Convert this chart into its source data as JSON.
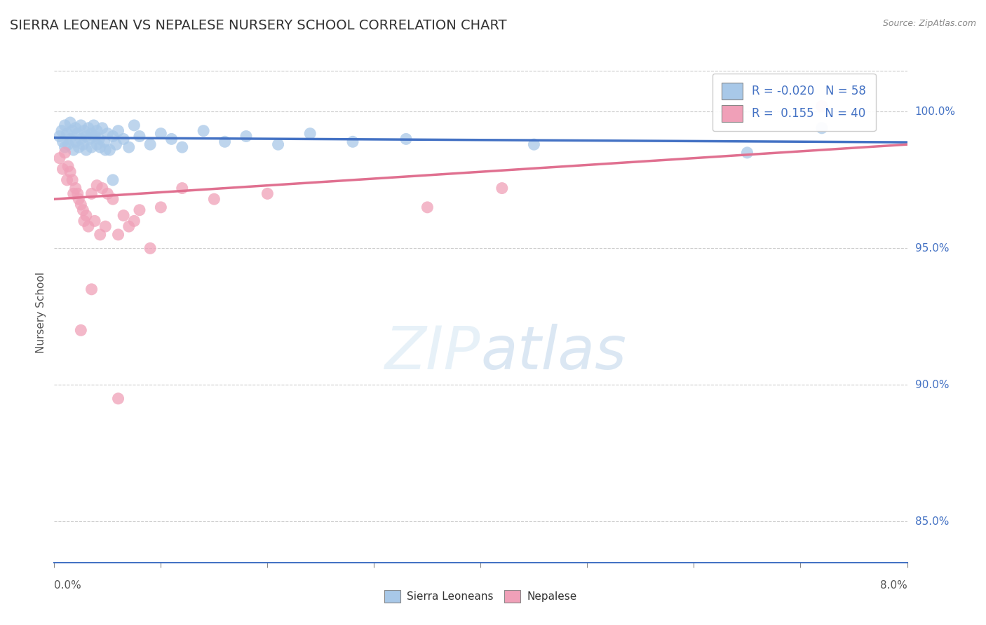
{
  "title": "SIERRA LEONEAN VS NEPALESE NURSERY SCHOOL CORRELATION CHART",
  "source": "Source: ZipAtlas.com",
  "ylabel": "Nursery School",
  "yticks": [
    85.0,
    90.0,
    95.0,
    100.0
  ],
  "xlim": [
    0.0,
    8.0
  ],
  "ylim": [
    83.5,
    101.8
  ],
  "legend_labels": [
    "Sierra Leoneans",
    "Nepalese"
  ],
  "R_blue": -0.02,
  "N_blue": 58,
  "R_pink": 0.155,
  "N_pink": 40,
  "blue_color": "#a8c8e8",
  "pink_color": "#f0a0b8",
  "line_blue": "#4472c4",
  "line_pink": "#e07090",
  "grid_color": "#cccccc",
  "background": "#ffffff",
  "blue_scatter_x": [
    0.05,
    0.07,
    0.08,
    0.1,
    0.1,
    0.12,
    0.13,
    0.15,
    0.15,
    0.17,
    0.18,
    0.2,
    0.2,
    0.22,
    0.23,
    0.25,
    0.25,
    0.27,
    0.28,
    0.3,
    0.3,
    0.32,
    0.33,
    0.35,
    0.35,
    0.37,
    0.38,
    0.4,
    0.4,
    0.42,
    0.43,
    0.45,
    0.47,
    0.5,
    0.52,
    0.55,
    0.58,
    0.6,
    0.65,
    0.7,
    0.75,
    0.8,
    0.9,
    1.0,
    1.1,
    1.2,
    1.4,
    1.6,
    1.8,
    2.1,
    2.4,
    2.8,
    3.3,
    4.5,
    6.5,
    7.2,
    0.48,
    0.55
  ],
  "blue_scatter_y": [
    99.1,
    99.3,
    98.9,
    99.5,
    98.7,
    99.2,
    98.8,
    99.6,
    99.0,
    99.3,
    98.6,
    99.4,
    98.9,
    99.2,
    98.7,
    99.5,
    99.0,
    98.8,
    99.3,
    99.1,
    98.6,
    99.4,
    99.0,
    99.2,
    98.7,
    99.5,
    99.1,
    98.8,
    99.3,
    99.0,
    98.7,
    99.4,
    98.9,
    99.2,
    98.6,
    99.1,
    98.8,
    99.3,
    99.0,
    98.7,
    99.5,
    99.1,
    98.8,
    99.2,
    99.0,
    98.7,
    99.3,
    98.9,
    99.1,
    98.8,
    99.2,
    98.9,
    99.0,
    98.8,
    98.5,
    99.4,
    98.6,
    97.5
  ],
  "pink_scatter_x": [
    0.05,
    0.08,
    0.1,
    0.12,
    0.13,
    0.15,
    0.17,
    0.18,
    0.2,
    0.22,
    0.23,
    0.25,
    0.27,
    0.28,
    0.3,
    0.32,
    0.35,
    0.38,
    0.4,
    0.43,
    0.45,
    0.48,
    0.5,
    0.55,
    0.6,
    0.65,
    0.7,
    0.75,
    0.8,
    0.9,
    1.0,
    1.2,
    1.5,
    2.0,
    3.5,
    4.2,
    7.2,
    0.35,
    0.25,
    0.6
  ],
  "pink_scatter_y": [
    98.3,
    97.9,
    98.5,
    97.5,
    98.0,
    97.8,
    97.5,
    97.0,
    97.2,
    97.0,
    96.8,
    96.6,
    96.4,
    96.0,
    96.2,
    95.8,
    97.0,
    96.0,
    97.3,
    95.5,
    97.2,
    95.8,
    97.0,
    96.8,
    95.5,
    96.2,
    95.8,
    96.0,
    96.4,
    95.0,
    96.5,
    97.2,
    96.8,
    97.0,
    96.5,
    97.2,
    100.2,
    93.5,
    92.0,
    89.5
  ],
  "blue_line_x": [
    0.0,
    8.0
  ],
  "blue_line_y": [
    99.05,
    98.88
  ],
  "pink_line_x": [
    0.0,
    8.0
  ],
  "pink_line_y": [
    96.8,
    98.8
  ]
}
